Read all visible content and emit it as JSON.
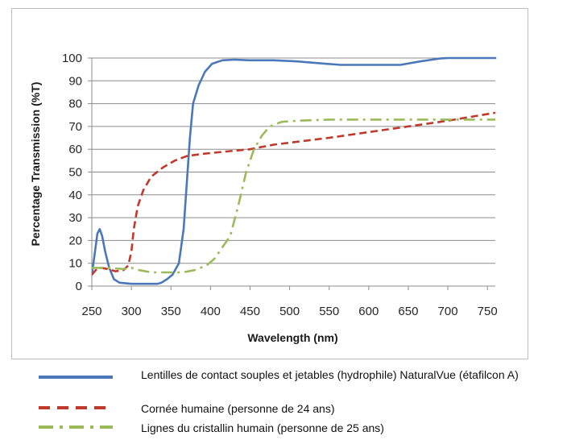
{
  "chart_data": {
    "type": "line",
    "title": "",
    "xlabel": "Wavelength (nm)",
    "ylabel": "Percentage Transmission (%T)",
    "xlim": [
      250,
      760
    ],
    "ylim": [
      0,
      100
    ],
    "xticks": [
      "250",
      "300",
      "350",
      "400",
      "450",
      "500",
      "550",
      "600",
      "650",
      "700",
      "750"
    ],
    "yticks": [
      "0",
      "10",
      "20",
      "30",
      "40",
      "50",
      "60",
      "70",
      "80",
      "90",
      "100"
    ],
    "grid": "horizontal",
    "legend_position": "below",
    "series": [
      {
        "name": "Lentilles de contact souples et jetables (hydrophile) NaturalVue (étafilcon A)",
        "color": "#4a78b8",
        "style": "solid",
        "points": [
          [
            250,
            5
          ],
          [
            254,
            15
          ],
          [
            257,
            23
          ],
          [
            260,
            25
          ],
          [
            263,
            22
          ],
          [
            267,
            15
          ],
          [
            272,
            8
          ],
          [
            278,
            3
          ],
          [
            285,
            1.5
          ],
          [
            300,
            1
          ],
          [
            320,
            1
          ],
          [
            333,
            1
          ],
          [
            338,
            1.5
          ],
          [
            345,
            3
          ],
          [
            352,
            5
          ],
          [
            360,
            10
          ],
          [
            366,
            25
          ],
          [
            370,
            45
          ],
          [
            374,
            65
          ],
          [
            378,
            80
          ],
          [
            385,
            88
          ],
          [
            393,
            94
          ],
          [
            402,
            97.5
          ],
          [
            415,
            99
          ],
          [
            430,
            99.3
          ],
          [
            450,
            99
          ],
          [
            480,
            99
          ],
          [
            510,
            98.5
          ],
          [
            545,
            97.5
          ],
          [
            565,
            97
          ],
          [
            590,
            97
          ],
          [
            615,
            97
          ],
          [
            640,
            97
          ],
          [
            665,
            98.5
          ],
          [
            690,
            99.8
          ],
          [
            700,
            100
          ],
          [
            760,
            100
          ]
        ]
      },
      {
        "name": "Cornée humaine (personne de 24 ans)",
        "color": "#c0392b",
        "style": "dashed",
        "points": [
          [
            250,
            5
          ],
          [
            255,
            7
          ],
          [
            262,
            8
          ],
          [
            270,
            7.5
          ],
          [
            280,
            6.5
          ],
          [
            290,
            7
          ],
          [
            296,
            9
          ],
          [
            300,
            15
          ],
          [
            303,
            25
          ],
          [
            308,
            35
          ],
          [
            315,
            42
          ],
          [
            325,
            48
          ],
          [
            340,
            52
          ],
          [
            355,
            55
          ],
          [
            370,
            57
          ],
          [
            390,
            58
          ],
          [
            420,
            59
          ],
          [
            450,
            60
          ],
          [
            480,
            62
          ],
          [
            550,
            65
          ],
          [
            650,
            70
          ],
          [
            700,
            72.5
          ],
          [
            760,
            76
          ]
        ]
      },
      {
        "name": "Lignes du cristallin humain (personne de 25 ans)",
        "color": "#9bbb59",
        "style": "dashdot",
        "points": [
          [
            250,
            8
          ],
          [
            270,
            8
          ],
          [
            290,
            7.5
          ],
          [
            300,
            8
          ],
          [
            310,
            7
          ],
          [
            325,
            6
          ],
          [
            345,
            6
          ],
          [
            365,
            6
          ],
          [
            380,
            7
          ],
          [
            395,
            9
          ],
          [
            405,
            12
          ],
          [
            415,
            17
          ],
          [
            425,
            22
          ],
          [
            435,
            35
          ],
          [
            445,
            50
          ],
          [
            455,
            60
          ],
          [
            465,
            66
          ],
          [
            475,
            70
          ],
          [
            490,
            72
          ],
          [
            510,
            72.5
          ],
          [
            550,
            73
          ],
          [
            600,
            73
          ],
          [
            650,
            73
          ],
          [
            700,
            73
          ],
          [
            760,
            73
          ]
        ]
      }
    ]
  }
}
